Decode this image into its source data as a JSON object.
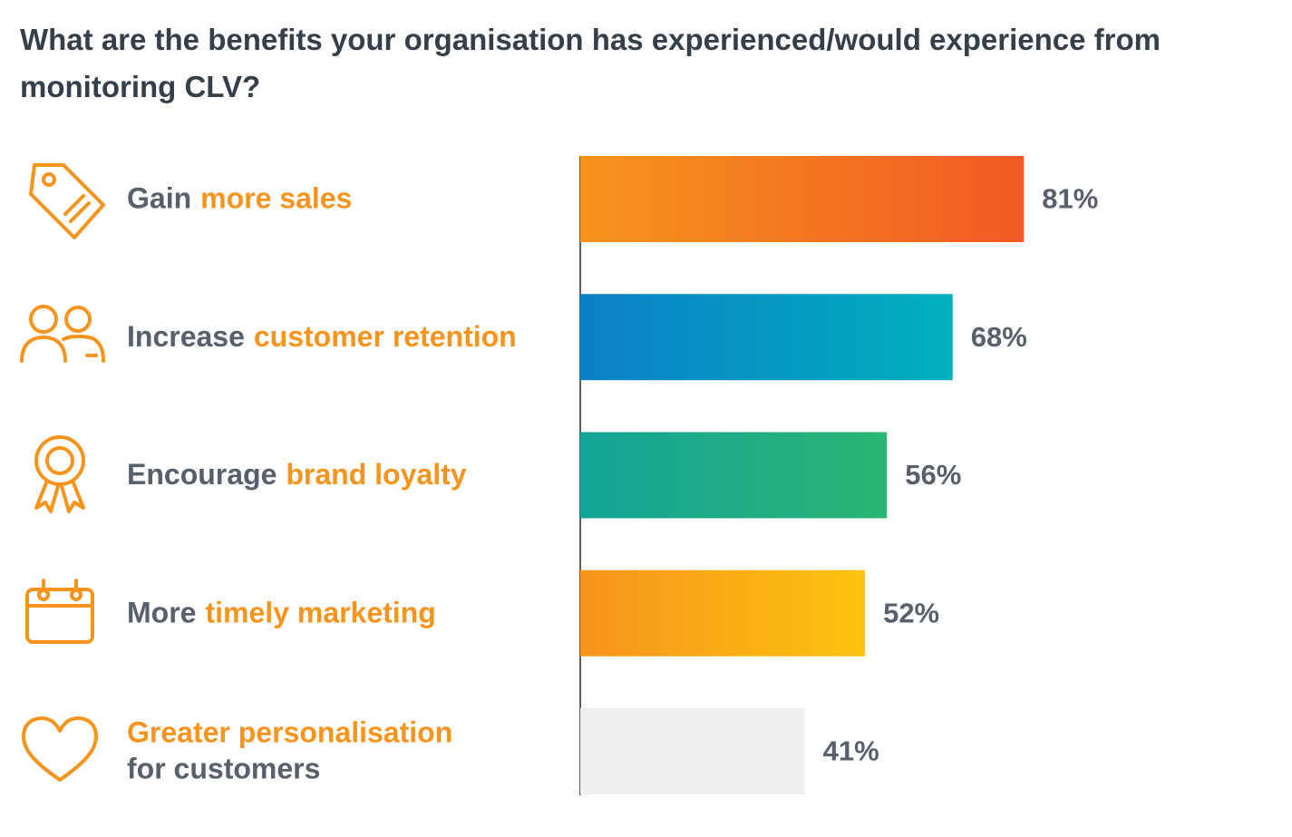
{
  "chart_data": {
    "type": "bar",
    "orientation": "horizontal",
    "title": "What are the benefits your organisation has experienced/would experience from monitoring CLV?",
    "categories": [
      [
        [
          {
            "text": "Gain",
            "color": "#58606b"
          },
          {
            "text": "more sales",
            "color": "#f7941d"
          }
        ]
      ],
      [
        [
          {
            "text": "Increase",
            "color": "#58606b"
          },
          {
            "text": "customer retention",
            "color": "#f7941d"
          }
        ]
      ],
      [
        [
          {
            "text": "Encourage",
            "color": "#58606b"
          },
          {
            "text": "brand loyalty",
            "color": "#f7941d"
          }
        ]
      ],
      [
        [
          {
            "text": "More",
            "color": "#58606b"
          },
          {
            "text": "timely marketing",
            "color": "#f7941d"
          }
        ]
      ],
      [
        [
          {
            "text": "Greater personalisation",
            "color": "#f7941d"
          }
        ],
        [
          {
            "text": "for customers",
            "color": "#58606b"
          }
        ]
      ]
    ],
    "values": [
      81,
      68,
      56,
      52,
      41
    ],
    "value_labels": [
      "81%",
      "68%",
      "56%",
      "52%",
      "41%"
    ],
    "colors": [
      [
        "#f7941d",
        "#f15a24"
      ],
      [
        "#0b7fc7",
        "#00b0bd"
      ],
      [
        "#13a397",
        "#2bb673"
      ],
      [
        "#f7941d",
        "#fcc30f"
      ],
      [
        "#efefef",
        "#efefef"
      ]
    ],
    "label_color": "#58606b",
    "xlim": [
      0,
      100
    ]
  }
}
